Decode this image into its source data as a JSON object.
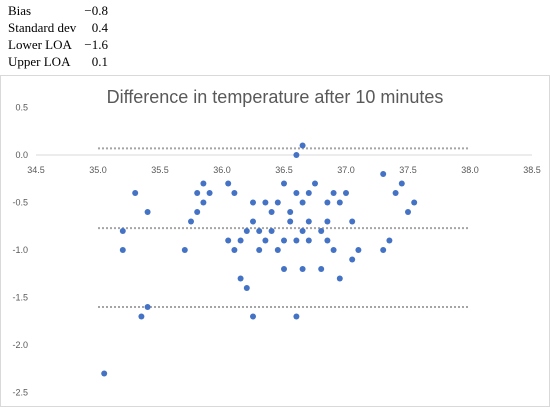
{
  "stats": [
    {
      "label": "Bias",
      "value": "−0.8"
    },
    {
      "label": "Standard dev",
      "value": "0.4"
    },
    {
      "label": "Lower LOA",
      "value": "−1.6"
    },
    {
      "label": "Upper LOA",
      "value": "0.1"
    }
  ],
  "chart_data": {
    "type": "scatter",
    "title": "Difference in temperature after 10 minutes",
    "xlim": [
      34.5,
      38.5
    ],
    "ylim": [
      -2.5,
      0.5
    ],
    "x_axis_crosses_at": 0,
    "grid": false,
    "xticks": [
      "34.5",
      "35.0",
      "35.5",
      "36.0",
      "36.5",
      "37.0",
      "37.5",
      "38.0",
      "38.5"
    ],
    "yticks": [
      "0.5",
      "0.0",
      "-0.5",
      "-1.0",
      "-1.5",
      "-2.0",
      "-2.5"
    ],
    "reference_lines": [
      {
        "y": 0.07,
        "x_from": 35.0,
        "x_to": 38.0,
        "style": "dotted"
      },
      {
        "y": -0.77,
        "x_from": 35.0,
        "x_to": 38.0,
        "style": "dotted"
      },
      {
        "y": -1.6,
        "x_from": 35.0,
        "x_to": 38.0,
        "style": "dotted"
      }
    ],
    "points": [
      [
        35.05,
        -2.3
      ],
      [
        35.2,
        -0.8
      ],
      [
        35.2,
        -1.0
      ],
      [
        35.3,
        -0.4
      ],
      [
        35.35,
        -1.7
      ],
      [
        35.4,
        -0.6
      ],
      [
        35.4,
        -1.6
      ],
      [
        35.7,
        -1.0
      ],
      [
        35.75,
        -0.7
      ],
      [
        35.8,
        -0.6
      ],
      [
        35.8,
        -0.4
      ],
      [
        35.85,
        -0.3
      ],
      [
        35.85,
        -0.5
      ],
      [
        35.9,
        -0.4
      ],
      [
        36.05,
        -0.3
      ],
      [
        36.05,
        -0.9
      ],
      [
        36.1,
        -0.4
      ],
      [
        36.1,
        -1.0
      ],
      [
        36.15,
        -0.9
      ],
      [
        36.15,
        -1.3
      ],
      [
        36.2,
        -0.8
      ],
      [
        36.2,
        -1.4
      ],
      [
        36.25,
        -0.5
      ],
      [
        36.25,
        -0.7
      ],
      [
        36.25,
        -1.7
      ],
      [
        36.3,
        -0.8
      ],
      [
        36.3,
        -1.0
      ],
      [
        36.35,
        -0.5
      ],
      [
        36.35,
        -0.9
      ],
      [
        36.4,
        -0.6
      ],
      [
        36.4,
        -0.8
      ],
      [
        36.45,
        -0.5
      ],
      [
        36.45,
        -1.0
      ],
      [
        36.5,
        -0.3
      ],
      [
        36.5,
        -0.9
      ],
      [
        36.5,
        -1.2
      ],
      [
        36.55,
        -0.7
      ],
      [
        36.55,
        -0.6
      ],
      [
        36.6,
        0.0
      ],
      [
        36.6,
        -0.4
      ],
      [
        36.6,
        -0.9
      ],
      [
        36.6,
        -1.7
      ],
      [
        36.65,
        0.1
      ],
      [
        36.65,
        -0.5
      ],
      [
        36.65,
        -0.8
      ],
      [
        36.65,
        -1.2
      ],
      [
        36.7,
        -0.4
      ],
      [
        36.7,
        -0.7
      ],
      [
        36.7,
        -0.9
      ],
      [
        36.75,
        -0.3
      ],
      [
        36.8,
        -0.8
      ],
      [
        36.8,
        -1.2
      ],
      [
        36.85,
        -0.5
      ],
      [
        36.85,
        -0.7
      ],
      [
        36.85,
        -0.9
      ],
      [
        36.9,
        -0.4
      ],
      [
        36.9,
        -1.0
      ],
      [
        36.95,
        -0.5
      ],
      [
        36.95,
        -1.3
      ],
      [
        37.0,
        -0.4
      ],
      [
        37.05,
        -0.7
      ],
      [
        37.05,
        -1.1
      ],
      [
        37.1,
        -1.0
      ],
      [
        37.3,
        -0.2
      ],
      [
        37.3,
        -1.0
      ],
      [
        37.35,
        -0.9
      ],
      [
        37.4,
        -0.4
      ],
      [
        37.45,
        -0.3
      ],
      [
        37.5,
        -0.6
      ],
      [
        37.55,
        -0.5
      ]
    ]
  },
  "colors": {
    "points": "#4472C4",
    "reference_lines": "#A5A5A5",
    "text": "#595959",
    "frame": "#D9D9D9",
    "axis": "#D9D9D9"
  }
}
